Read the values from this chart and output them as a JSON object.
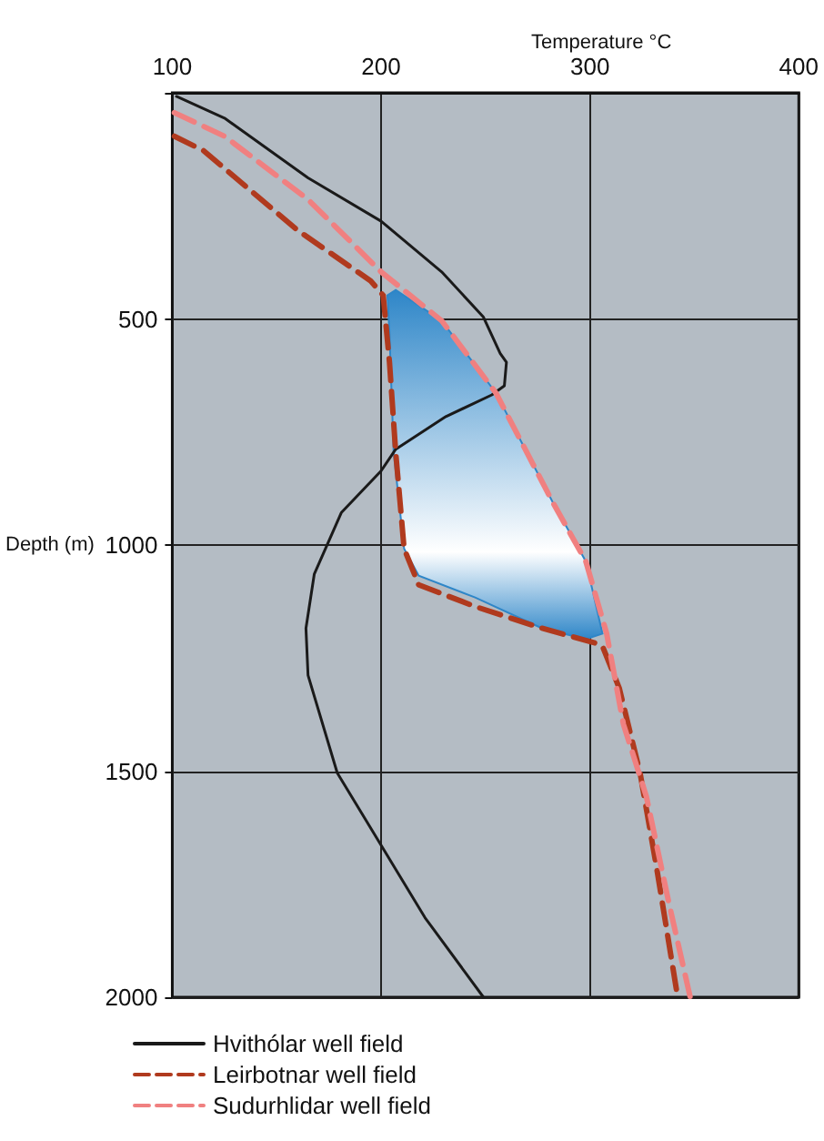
{
  "chart_data": {
    "type": "line",
    "xlabel": "Temperature °C",
    "ylabel": "Depth (m)",
    "xlim": [
      100,
      400
    ],
    "xticks": [
      100,
      200,
      300,
      400
    ],
    "ylim": [
      2000,
      0
    ],
    "yticks": [
      {
        "value": 0,
        "label": null
      },
      500,
      1000,
      1500,
      2000
    ],
    "grid": true,
    "legend": "bottom",
    "marker": "none",
    "series": [
      {
        "type": "area",
        "color": "#2e86c8",
        "x": [
          203,
          207,
          229,
          255,
          282,
          298,
          306,
          298,
          277,
          245,
          218,
          211,
          206,
          204,
          203
        ],
        "values": [
          448,
          436,
          504,
          664,
          904,
          1036,
          1196,
          1208,
          1184,
          1116,
          1068,
          1008,
          796,
          532,
          448
        ]
      },
      {
        "name": "Hvithólar well field",
        "color": "#1a1a1a",
        "line_style": "solid",
        "x": [
          102,
          125,
          165,
          200,
          229,
          249,
          257,
          260,
          259,
          253,
          231,
          207,
          200,
          181,
          168,
          164,
          165,
          179,
          200,
          221,
          249
        ],
        "values": [
          8,
          56,
          188,
          284,
          396,
          496,
          576,
          596,
          648,
          668,
          716,
          788,
          836,
          928,
          1064,
          1184,
          1288,
          1504,
          1664,
          1824,
          2000
        ]
      },
      {
        "name": "Leirbotnar well field",
        "color": "#b03a1e",
        "line_style": "dashed",
        "x": [
          101,
          115,
          160,
          195,
          201,
          204,
          207,
          211,
          218,
          245,
          277,
          302,
          306,
          314,
          324,
          332,
          342
        ],
        "values": [
          96,
          128,
          304,
          416,
          448,
          596,
          796,
          1008,
          1088,
          1136,
          1184,
          1216,
          1224,
          1316,
          1504,
          1716,
          2000
        ]
      },
      {
        "name": "Sudurhlidar well field",
        "color": "#f08080",
        "line_style": "dashed",
        "x": [
          101,
          125,
          165,
          200,
          229,
          255,
          282,
          298,
          308,
          316,
          327,
          338,
          348
        ],
        "values": [
          44,
          96,
          236,
          396,
          504,
          664,
          904,
          1036,
          1196,
          1396,
          1556,
          1796,
          2000
        ]
      }
    ]
  }
}
